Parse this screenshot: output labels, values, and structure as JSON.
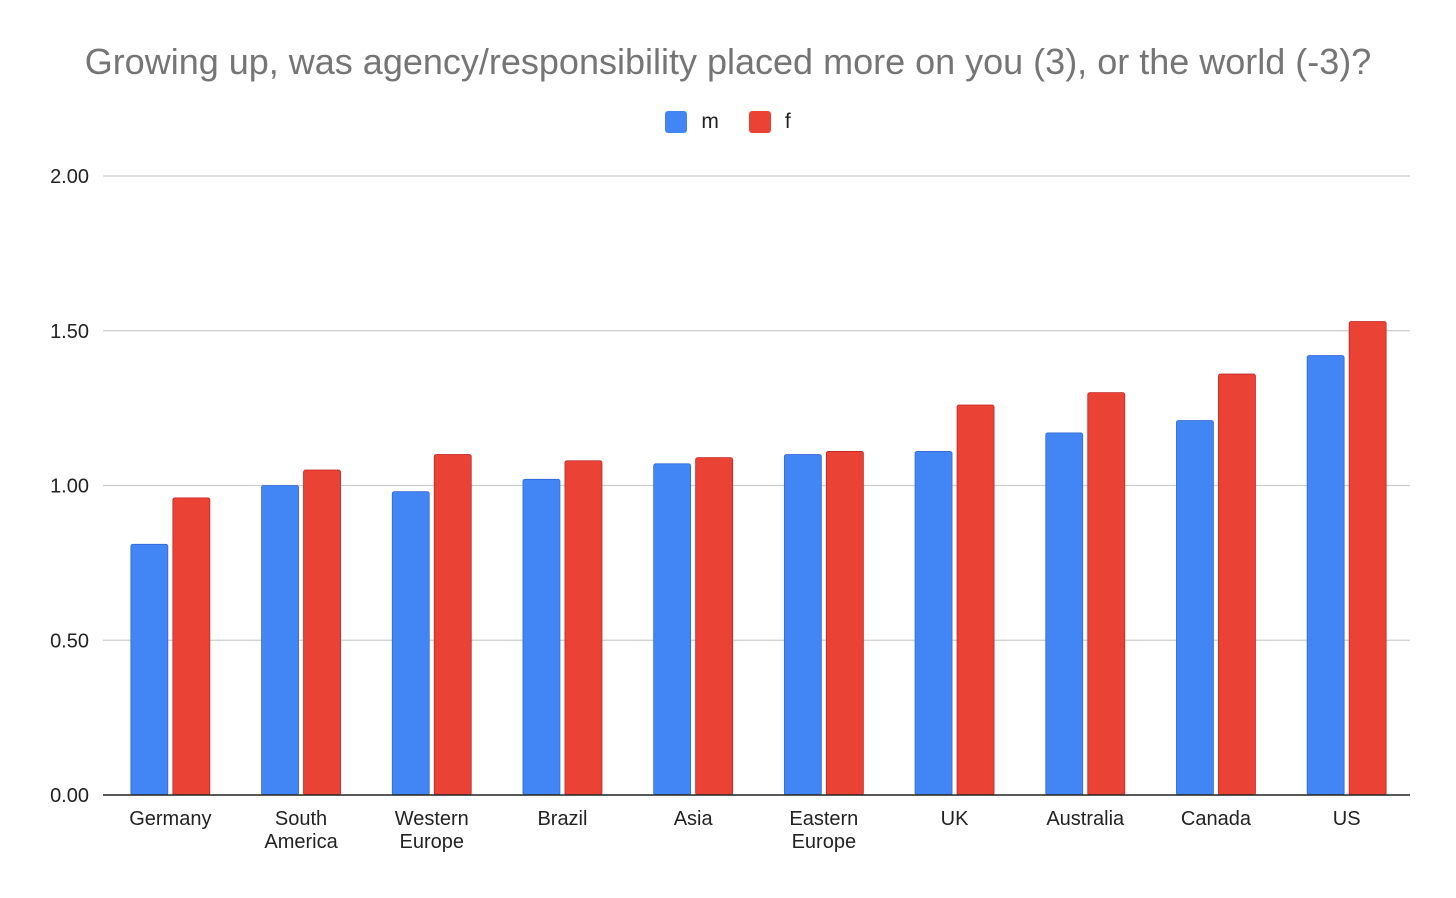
{
  "chart_data": {
    "type": "bar",
    "title": "Growing up, was agency/responsibility placed more on you (3), or the world (-3)?",
    "xlabel": "",
    "ylabel": "",
    "ylim": [
      0,
      2
    ],
    "yticks": [
      "0.00",
      "0.50",
      "1.00",
      "1.50",
      "2.00"
    ],
    "grid": true,
    "legend": "top-center",
    "categories": [
      [
        "Germany"
      ],
      [
        "South",
        "America"
      ],
      [
        "Western",
        "Europe"
      ],
      [
        "Brazil"
      ],
      [
        "Asia"
      ],
      [
        "Eastern",
        "Europe"
      ],
      [
        "UK"
      ],
      [
        "Australia"
      ],
      [
        "Canada"
      ],
      [
        "US"
      ]
    ],
    "series": [
      {
        "name": "m",
        "color": "#4285f4",
        "values": [
          0.81,
          1.0,
          0.98,
          1.02,
          1.07,
          1.1,
          1.11,
          1.17,
          1.21,
          1.42
        ]
      },
      {
        "name": "f",
        "color": "#ea4335",
        "values": [
          0.96,
          1.05,
          1.1,
          1.08,
          1.09,
          1.11,
          1.26,
          1.3,
          1.36,
          1.53
        ]
      }
    ]
  }
}
